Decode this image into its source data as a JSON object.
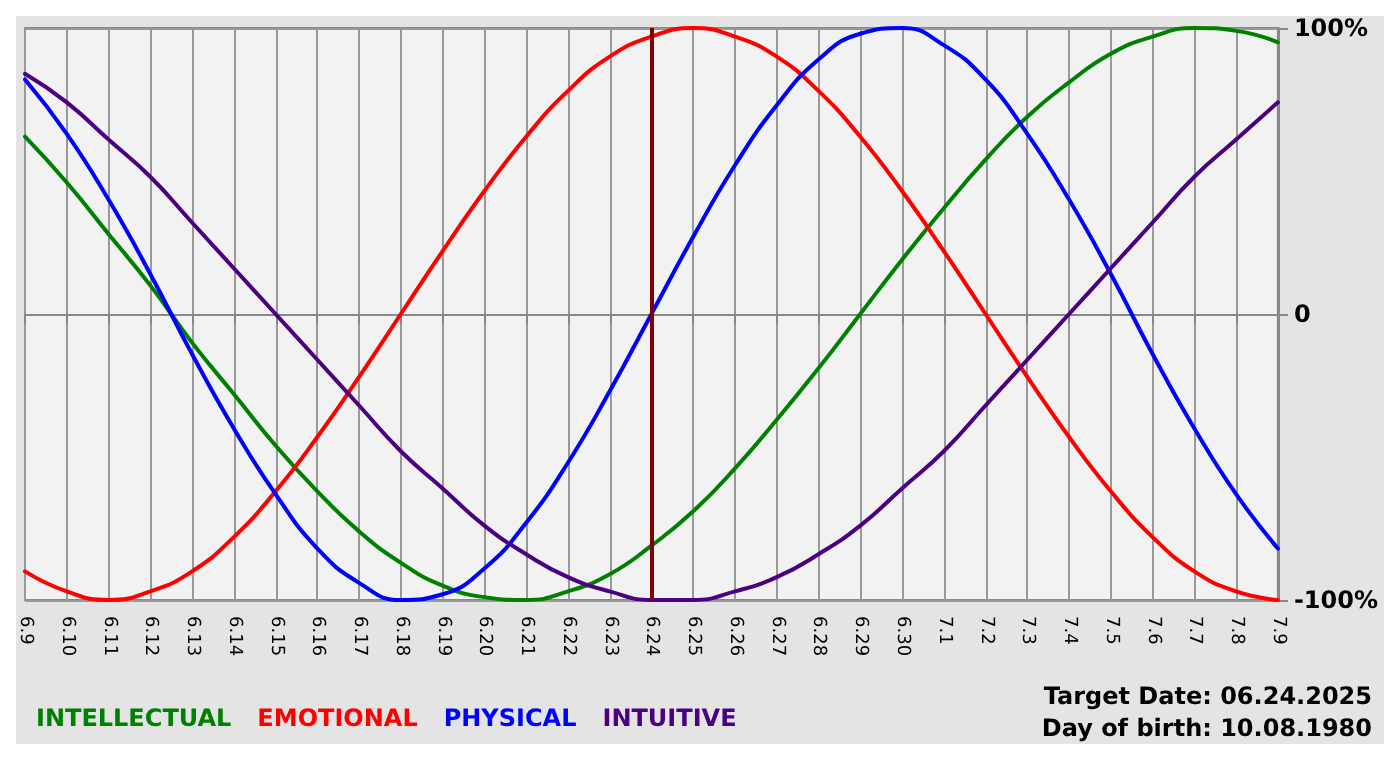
{
  "chart_data": {
    "type": "line",
    "categories": [
      "6.9",
      "6.10",
      "6.11",
      "6.12",
      "6.13",
      "6.14",
      "6.15",
      "6.16",
      "6.17",
      "6.18",
      "6.19",
      "6.20",
      "6.21",
      "6.22",
      "6.23",
      "6.24",
      "6.25",
      "6.26",
      "6.27",
      "6.28",
      "6.29",
      "6.30",
      "7.1",
      "7.2",
      "7.3",
      "7.4",
      "7.5",
      "7.6",
      "7.7",
      "7.8",
      "7.9"
    ],
    "series": [
      {
        "name": "INTELLECTUAL",
        "color": "#008000",
        "values": [
          62,
          46,
          28,
          10,
          -10,
          -28,
          -46,
          -62,
          -76,
          -87,
          -95,
          -99,
          -100,
          -97,
          -91,
          -81,
          -69,
          -54,
          -37,
          -19,
          0,
          19,
          37,
          54,
          69,
          81,
          91,
          97,
          100,
          99,
          95
        ]
      },
      {
        "name": "EMOTIONAL",
        "color": "#ff0000",
        "values": [
          -90,
          -97,
          -100,
          -97,
          -90,
          -78,
          -62,
          -43,
          -22,
          0,
          22,
          43,
          62,
          78,
          90,
          97,
          100,
          97,
          90,
          78,
          62,
          43,
          22,
          0,
          -22,
          -43,
          -62,
          -78,
          -90,
          -97,
          -100
        ]
      },
      {
        "name": "PHYSICAL",
        "color": "#0000ff",
        "values": [
          82,
          63,
          40,
          14,
          -14,
          -40,
          -63,
          -82,
          -94,
          -100,
          -98,
          -89,
          -73,
          -52,
          -27,
          0,
          27,
          52,
          73,
          89,
          98,
          100,
          94,
          82,
          63,
          40,
          14,
          -14,
          -40,
          -63,
          -82
        ]
      },
      {
        "name": "INTUITIVE",
        "color": "#4b0082",
        "values": [
          84,
          74,
          61,
          48,
          32,
          16,
          0,
          -16,
          -32,
          -48,
          -61,
          -74,
          -84,
          -92,
          -97,
          -100,
          -100,
          -97,
          -92,
          -84,
          -74,
          -61,
          -48,
          -32,
          -16,
          0,
          16,
          32,
          48,
          61,
          74
        ]
      }
    ],
    "ylim": [
      -100,
      100
    ],
    "yticks": [
      {
        "value": -100,
        "label": "-100%"
      },
      {
        "value": 0,
        "label": "0"
      },
      {
        "value": 100,
        "label": "100%"
      }
    ],
    "ref_lines": [
      {
        "axis": "x",
        "value": "6.24",
        "color": "#800000"
      }
    ],
    "annotations": [
      "Target Date: 06.24.2025",
      "Day of birth: 10.08.1980"
    ],
    "grid": true,
    "legend": "bottom left",
    "marker": "none",
    "line_style": "solid"
  }
}
